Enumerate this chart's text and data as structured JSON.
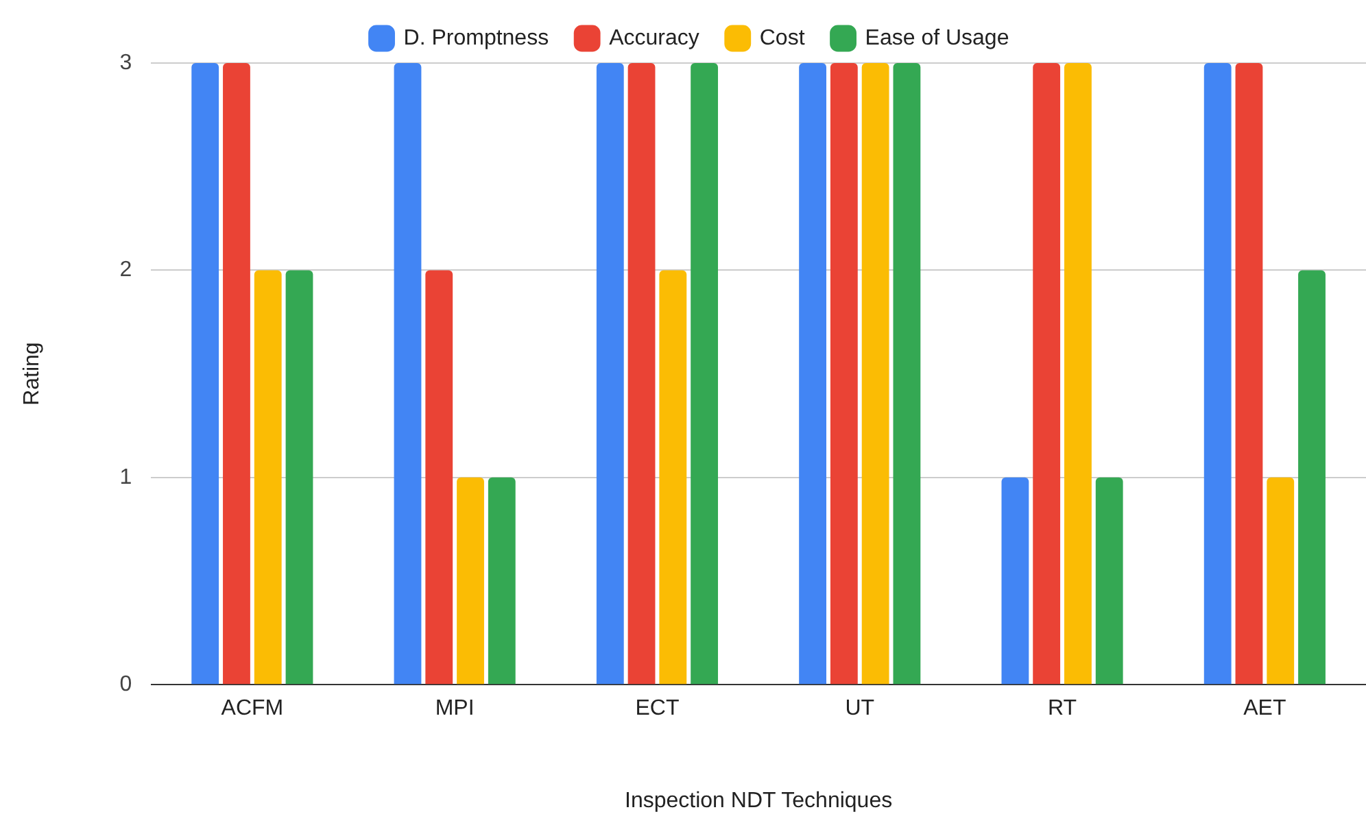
{
  "chart_data": {
    "type": "bar",
    "xlabel": "Inspection NDT Techniques",
    "ylabel": "Rating",
    "categories": [
      "ACFM",
      "MPI",
      "ECT",
      "UT",
      "RT",
      "AET"
    ],
    "series": [
      {
        "name": "D. Promptness",
        "color": "#4285f4",
        "values": [
          3,
          3,
          3,
          3,
          1,
          3
        ]
      },
      {
        "name": "Accuracy",
        "color": "#ea4335",
        "values": [
          3,
          2,
          3,
          3,
          3,
          3
        ]
      },
      {
        "name": "Cost",
        "color": "#fbbc04",
        "values": [
          2,
          1,
          2,
          3,
          3,
          1
        ]
      },
      {
        "name": "Ease of Usage",
        "color": "#34a853",
        "values": [
          2,
          1,
          3,
          3,
          1,
          2
        ]
      }
    ],
    "ylim": [
      0,
      3
    ],
    "yticks": [
      0,
      1,
      2,
      3
    ],
    "grid": "y",
    "legend": "top"
  }
}
